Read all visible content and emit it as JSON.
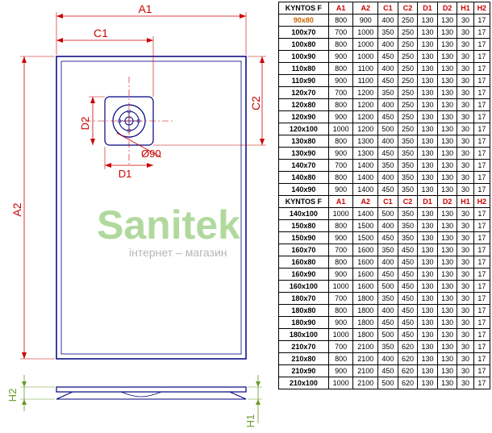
{
  "diagram": {
    "labels": {
      "A1": "A1",
      "A2": "A2",
      "C1": "C1",
      "C2": "C2",
      "D1": "D1",
      "D2": "D2",
      "H1": "H1",
      "H2": "H2",
      "diameter": "Ø90"
    },
    "stroke_main": "#000080",
    "stroke_thin": "#000080",
    "dim_color": "#cc0000",
    "h_color": "#6a9a2a"
  },
  "watermark": {
    "main": "Sanitek",
    "sub": "інтернет – магазин"
  },
  "table": {
    "title": "KYNTOS F",
    "headers": [
      "A1",
      "A2",
      "C1",
      "C2",
      "D1",
      "D2",
      "H1",
      "H2"
    ],
    "header_color": "#cc0000",
    "highlight_row": "90x80",
    "rows": [
      [
        "90x80",
        800,
        900,
        400,
        250,
        130,
        130,
        30,
        17
      ],
      [
        "100x70",
        700,
        1000,
        350,
        250,
        130,
        130,
        30,
        17
      ],
      [
        "100x80",
        800,
        1000,
        400,
        250,
        130,
        130,
        30,
        17
      ],
      [
        "100x90",
        900,
        1000,
        450,
        250,
        130,
        130,
        30,
        17
      ],
      [
        "110x80",
        800,
        1100,
        400,
        250,
        130,
        130,
        30,
        17
      ],
      [
        "110x90",
        900,
        1100,
        450,
        250,
        130,
        130,
        30,
        17
      ],
      [
        "120x70",
        700,
        1200,
        350,
        250,
        130,
        130,
        30,
        17
      ],
      [
        "120x80",
        800,
        1200,
        400,
        250,
        130,
        130,
        30,
        17
      ],
      [
        "120x90",
        900,
        1200,
        450,
        250,
        130,
        130,
        30,
        17
      ],
      [
        "120x100",
        1000,
        1200,
        500,
        250,
        130,
        130,
        30,
        17
      ],
      [
        "130x80",
        800,
        1300,
        400,
        350,
        130,
        130,
        30,
        17
      ],
      [
        "130x90",
        900,
        1300,
        450,
        350,
        130,
        130,
        30,
        17
      ],
      [
        "140x70",
        700,
        1400,
        350,
        350,
        130,
        130,
        30,
        17
      ],
      [
        "140x80",
        800,
        1400,
        400,
        350,
        130,
        130,
        30,
        17
      ],
      [
        "140x90",
        900,
        1400,
        450,
        350,
        130,
        130,
        30,
        17
      ]
    ],
    "rows2": [
      [
        "140x100",
        1000,
        1400,
        500,
        350,
        130,
        130,
        30,
        17
      ],
      [
        "150x80",
        800,
        1500,
        400,
        350,
        130,
        130,
        30,
        17
      ],
      [
        "150x90",
        900,
        1500,
        450,
        350,
        130,
        130,
        30,
        17
      ],
      [
        "160x70",
        700,
        1600,
        350,
        450,
        130,
        130,
        30,
        17
      ],
      [
        "160x80",
        800,
        1600,
        400,
        450,
        130,
        130,
        30,
        17
      ],
      [
        "160x90",
        900,
        1600,
        450,
        450,
        130,
        130,
        30,
        17
      ],
      [
        "160x100",
        1000,
        1600,
        500,
        450,
        130,
        130,
        30,
        17
      ],
      [
        "180x70",
        700,
        1800,
        350,
        450,
        130,
        130,
        30,
        17
      ],
      [
        "180x80",
        800,
        1800,
        400,
        450,
        130,
        130,
        30,
        17
      ],
      [
        "180x90",
        900,
        1800,
        450,
        450,
        130,
        130,
        30,
        17
      ],
      [
        "180x100",
        1000,
        1800,
        500,
        450,
        130,
        130,
        30,
        17
      ],
      [
        "210x70",
        700,
        2100,
        350,
        620,
        130,
        130,
        30,
        17
      ],
      [
        "210x80",
        800,
        2100,
        400,
        620,
        130,
        130,
        30,
        17
      ],
      [
        "210x90",
        900,
        2100,
        450,
        620,
        130,
        130,
        30,
        17
      ],
      [
        "210x100",
        1000,
        2100,
        500,
        620,
        130,
        130,
        30,
        17
      ]
    ]
  }
}
